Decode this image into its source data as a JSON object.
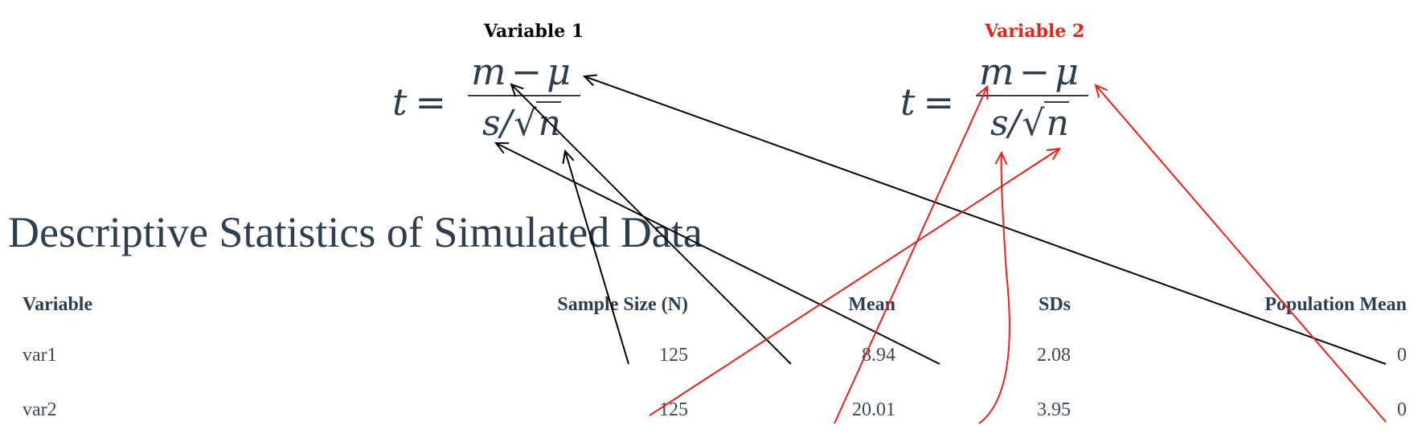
{
  "formulas": [
    {
      "label": "Variable 1",
      "label_color": "#000000",
      "lhs": "t",
      "equals": "=",
      "m": "m",
      "minus": "−",
      "mu": "μ",
      "s": "s",
      "slash": "/",
      "radical": "√",
      "n": "n"
    },
    {
      "label": "Variable 2",
      "label_color": "#e8221b",
      "lhs": "t",
      "equals": "=",
      "m": "m",
      "minus": "−",
      "mu": "μ",
      "s": "s",
      "slash": "/",
      "radical": "√",
      "n": "n"
    }
  ],
  "title": "Descriptive Statistics of Simulated Data",
  "table": {
    "headers": [
      "Variable",
      "Sample Size (N)",
      "Mean",
      "SDs",
      "Population Mean"
    ],
    "rows": [
      [
        "var1",
        "125",
        "8.94",
        "2.08",
        "0"
      ],
      [
        "var2",
        "125",
        "20.01",
        "3.95",
        "0"
      ]
    ]
  },
  "colors": {
    "text": "#2c3e50",
    "arrow_var1": "#000000",
    "arrow_var2": "#e8221b"
  }
}
